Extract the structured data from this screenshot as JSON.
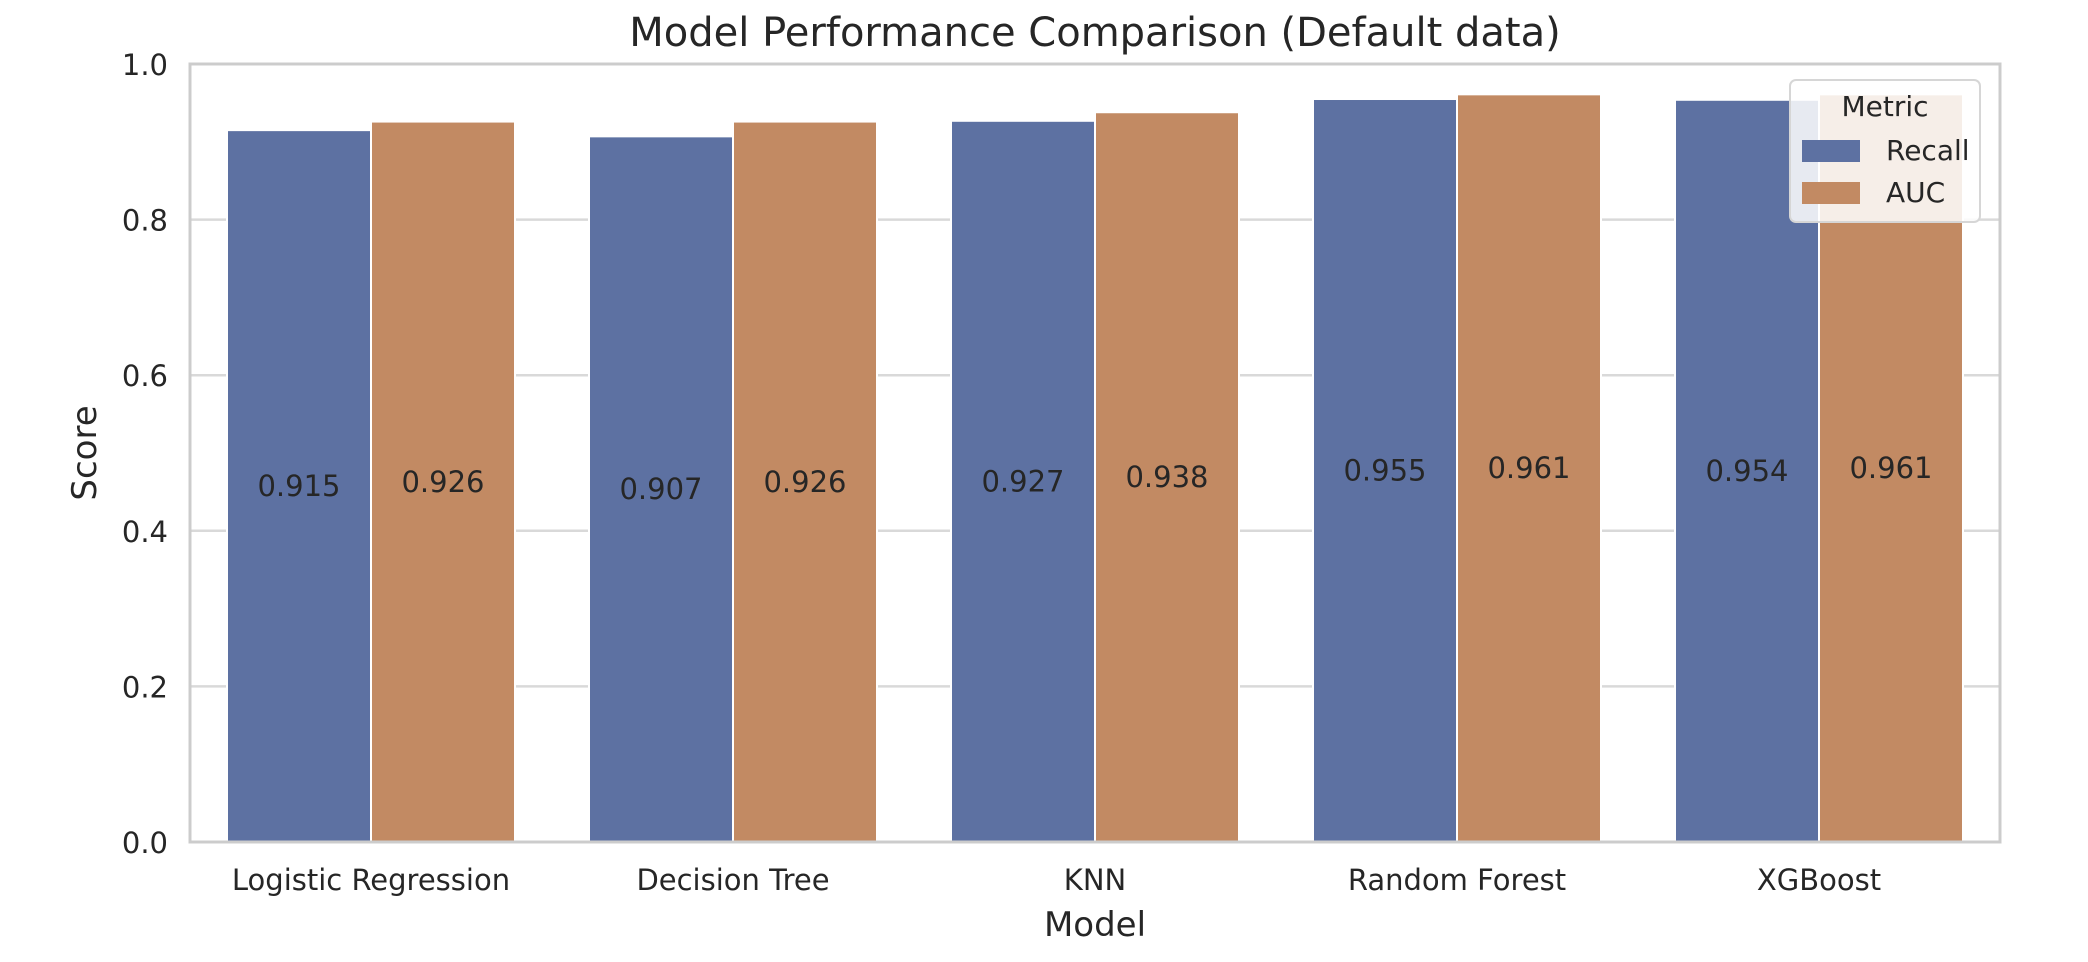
{
  "chart_data": {
    "type": "bar",
    "title": "Model Performance Comparison (Default data)",
    "xlabel": "Model",
    "ylabel": "Score",
    "ylim": [
      0.0,
      1.0
    ],
    "yticks": [
      0.0,
      0.2,
      0.4,
      0.6,
      0.8,
      1.0
    ],
    "ytick_labels": [
      "0.0",
      "0.2",
      "0.4",
      "0.6",
      "0.8",
      "1.0"
    ],
    "grid": true,
    "categories": [
      "Logistic Regression",
      "Decision Tree",
      "KNN",
      "Random Forest",
      "XGBoost"
    ],
    "series": [
      {
        "name": "Recall",
        "color": "#5d71a2",
        "values": [
          0.915,
          0.907,
          0.927,
          0.955,
          0.954
        ],
        "labels": [
          "0.915",
          "0.907",
          "0.927",
          "0.955",
          "0.954"
        ]
      },
      {
        "name": "AUC",
        "color": "#c28a63",
        "values": [
          0.926,
          0.926,
          0.938,
          0.961,
          0.961
        ],
        "labels": [
          "0.926",
          "0.926",
          "0.938",
          "0.961",
          "0.961"
        ]
      }
    ],
    "legend": {
      "title": "Metric",
      "placement": "top-right"
    }
  }
}
